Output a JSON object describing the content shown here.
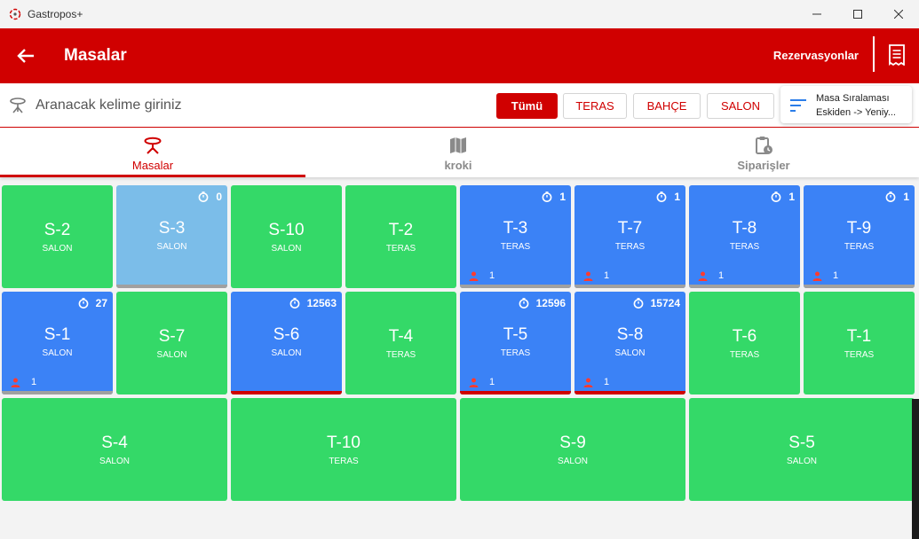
{
  "window": {
    "title": "Gastropos+"
  },
  "appbar": {
    "title": "Masalar",
    "reservations_label": "Rezervasyonlar"
  },
  "search": {
    "placeholder": "Aranacak kelime giriniz"
  },
  "filters": [
    {
      "label": "Tümü",
      "active": true
    },
    {
      "label": "TERAS",
      "active": false
    },
    {
      "label": "BAHÇE",
      "active": false
    },
    {
      "label": "SALON",
      "active": false
    }
  ],
  "sort": {
    "title": "Masa Sıralaması",
    "value": "Eskiden -> Yeniy..."
  },
  "tabs": [
    {
      "label": "Masalar",
      "icon": "table-icon",
      "active": true
    },
    {
      "label": "kroki",
      "icon": "map-icon",
      "active": false
    },
    {
      "label": "Siparişler",
      "icon": "clipboard-clock-icon",
      "active": false
    }
  ],
  "colors": {
    "brand_red": "#d00000",
    "free_green": "#34d968",
    "occupied_blue": "#3b82f6",
    "pending_lightblue": "#7bbde9",
    "bar_gray": "#a0a0a0",
    "bar_red": "#d00000"
  },
  "tables": [
    {
      "name": "S-2",
      "zone": "SALON",
      "status": "free"
    },
    {
      "name": "S-3",
      "zone": "SALON",
      "status": "pending",
      "timer": "0",
      "bar": "gray"
    },
    {
      "name": "S-10",
      "zone": "SALON",
      "status": "free"
    },
    {
      "name": "T-2",
      "zone": "TERAS",
      "status": "free"
    },
    {
      "name": "T-3",
      "zone": "TERAS",
      "status": "occupied",
      "timer": "1",
      "guests": "1",
      "bar": "gray"
    },
    {
      "name": "T-7",
      "zone": "TERAS",
      "status": "occupied",
      "timer": "1",
      "guests": "1",
      "bar": "gray"
    },
    {
      "name": "T-8",
      "zone": "TERAS",
      "status": "occupied",
      "timer": "1",
      "guests": "1",
      "bar": "gray"
    },
    {
      "name": "T-9",
      "zone": "TERAS",
      "status": "occupied",
      "timer": "1",
      "guests": "1",
      "bar": "gray"
    },
    {
      "name": "S-1",
      "zone": "SALON",
      "status": "occupied",
      "timer": "27",
      "guests": "1",
      "bar": "gray"
    },
    {
      "name": "S-7",
      "zone": "SALON",
      "status": "free"
    },
    {
      "name": "S-6",
      "zone": "SALON",
      "status": "occupied",
      "timer": "12563",
      "bar": "red"
    },
    {
      "name": "T-4",
      "zone": "TERAS",
      "status": "free"
    },
    {
      "name": "T-5",
      "zone": "TERAS",
      "status": "occupied",
      "timer": "12596",
      "guests": "1",
      "bar": "red"
    },
    {
      "name": "S-8",
      "zone": "SALON",
      "status": "occupied",
      "timer": "15724",
      "guests": "1",
      "bar": "red"
    },
    {
      "name": "T-6",
      "zone": "TERAS",
      "status": "free"
    },
    {
      "name": "T-1",
      "zone": "TERAS",
      "status": "free"
    },
    {
      "name": "S-4",
      "zone": "SALON",
      "status": "free"
    },
    {
      "name": "T-10",
      "zone": "TERAS",
      "status": "free"
    },
    {
      "name": "S-9",
      "zone": "SALON",
      "status": "free"
    },
    {
      "name": "S-5",
      "zone": "SALON",
      "status": "free"
    }
  ]
}
